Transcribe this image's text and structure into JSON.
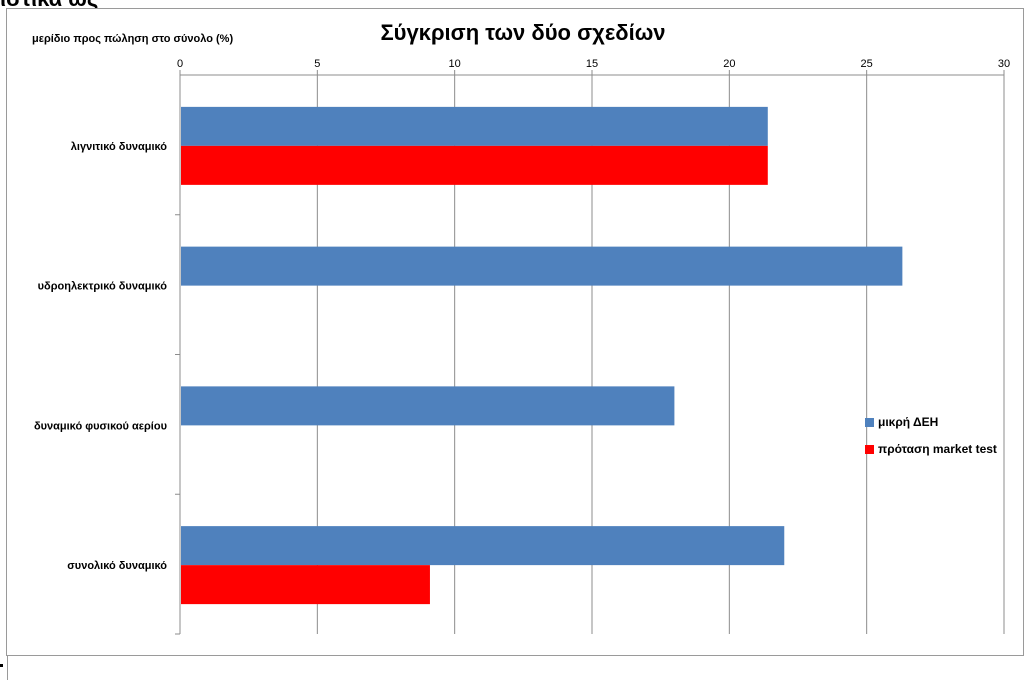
{
  "page": {
    "top_fragment": "ιστικά ως"
  },
  "chart_data": {
    "type": "bar",
    "orientation": "horizontal",
    "title": "Σύγκριση των δύο σχεδίων",
    "ylabel": "μερίδιο προς πώληση στο σύνολο (%)",
    "xlabel": "",
    "xlim": [
      0,
      30
    ],
    "xticks": [
      0,
      5,
      10,
      15,
      20,
      25,
      30
    ],
    "grid": true,
    "legend_position": "right",
    "categories": [
      "λιγνιτικό δυναμικό",
      "υδροηλεκτρικό δυναμικό",
      "δυναμικό φυσικού αερίου",
      "συνολικό δυναμικό"
    ],
    "series": [
      {
        "name": "μικρή ΔΕΗ",
        "color": "#4f81bd",
        "values": [
          21.4,
          26.3,
          18.0,
          22.0
        ]
      },
      {
        "name": "πρόταση market test",
        "color": "#ff0000",
        "values": [
          21.4,
          0,
          0,
          9.1
        ]
      }
    ]
  }
}
